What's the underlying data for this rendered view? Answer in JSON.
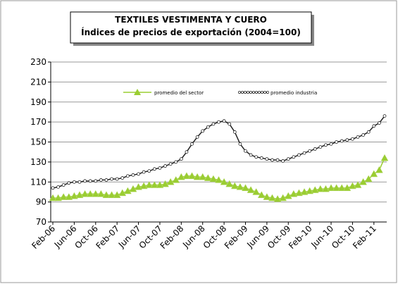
{
  "chart_data": {
    "type": "line",
    "title": "TEXTILES VESTIMENTA Y CUERO",
    "subtitle": "Índices de precios de exportación (2004=100)",
    "categories": [
      "Feb-06",
      null,
      null,
      null,
      "Jun-06",
      null,
      null,
      null,
      "Oct-06",
      null,
      null,
      null,
      "Feb-07",
      null,
      null,
      null,
      "Jun-07",
      null,
      null,
      null,
      "Oct-07",
      null,
      null,
      null,
      "Feb-08",
      null,
      null,
      null,
      "Jun-08",
      null,
      null,
      null,
      "Oct-08",
      null,
      null,
      null,
      "Feb-09",
      null,
      null,
      null,
      "Jun-09",
      null,
      null,
      null,
      "Oct-09",
      null,
      null,
      null,
      "Feb-10",
      null,
      null,
      null,
      "Jun-10",
      null,
      null,
      null,
      "Oct-10",
      null,
      null,
      null,
      "Feb-11",
      null,
      null
    ],
    "series": [
      {
        "name": "promedio del sector",
        "color": "#9ACD32",
        "marker": "triangle",
        "values": [
          94,
          94,
          95,
          95,
          96,
          97,
          98,
          98,
          98,
          98,
          97,
          97,
          97,
          99,
          101,
          103,
          105,
          106,
          107,
          107,
          107,
          108,
          110,
          112,
          115,
          116,
          116,
          115,
          115,
          114,
          113,
          112,
          110,
          108,
          106,
          105,
          104,
          102,
          100,
          97,
          95,
          94,
          93,
          94,
          96,
          98,
          99,
          100,
          101,
          102,
          103,
          103,
          104,
          104,
          104,
          104,
          106,
          107,
          110,
          113,
          118,
          122,
          134
        ]
      },
      {
        "name": "promedio industria",
        "color": "#222222",
        "marker": "circle",
        "values": [
          104,
          105,
          107,
          109,
          110,
          110,
          111,
          111,
          111,
          112,
          112,
          113,
          113,
          114,
          116,
          117,
          118,
          120,
          121,
          123,
          124,
          126,
          128,
          130,
          133,
          140,
          148,
          155,
          161,
          165,
          168,
          170,
          171,
          168,
          160,
          148,
          141,
          137,
          135,
          134,
          133,
          132,
          132,
          131,
          133,
          135,
          137,
          139,
          141,
          143,
          145,
          147,
          148,
          150,
          151,
          152,
          153,
          155,
          157,
          160,
          166,
          169,
          176
        ]
      }
    ],
    "ylim": [
      70,
      230
    ],
    "yticks": [
      70,
      90,
      110,
      130,
      150,
      170,
      190,
      210,
      230
    ],
    "grid": true,
    "legend": "top"
  }
}
